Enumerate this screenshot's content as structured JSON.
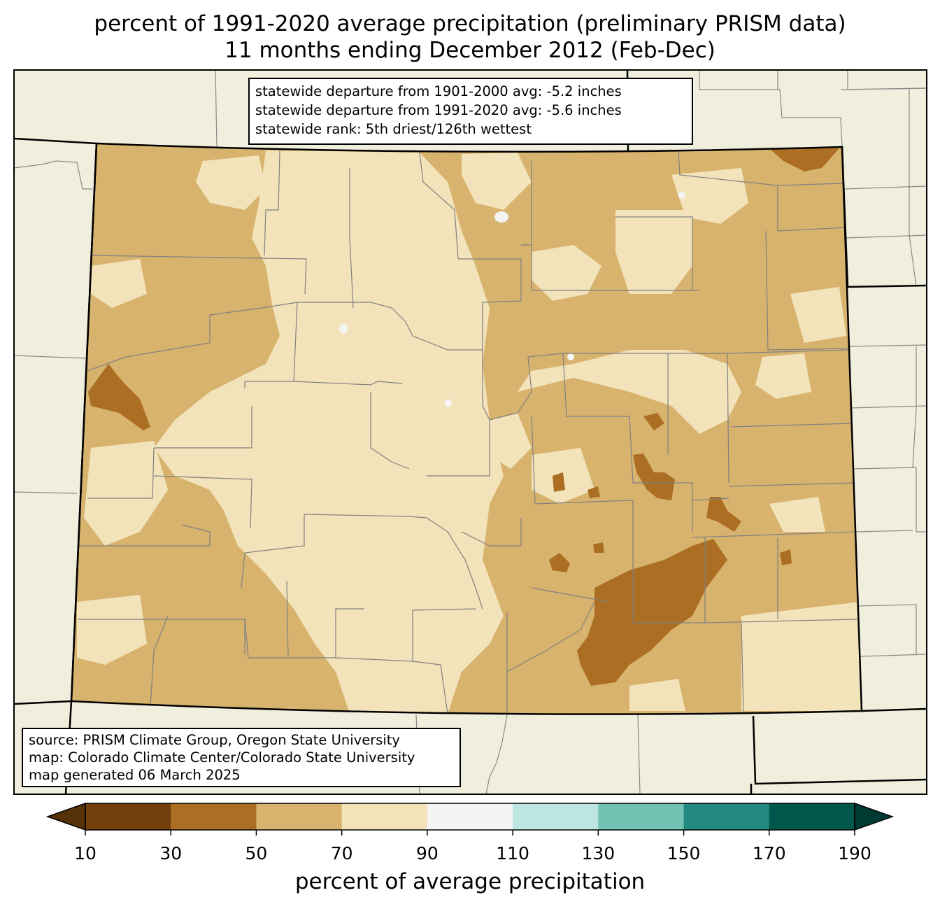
{
  "title": {
    "line1": "percent of 1991-2020 average precipitation (preliminary PRISM data)",
    "line2": "11 months ending December 2012 (Feb-Dec)"
  },
  "stats_box": {
    "line1": "statewide departure from 1901-2000 avg: -5.2 inches",
    "line2": "statewide departure from 1991-2020 avg: -5.6 inches",
    "line3": "statewide rank: 5th driest/126th wettest"
  },
  "source_box": {
    "line1": "source: PRISM Climate Group, Oregon State University",
    "line2": "map: Colorado Climate Center/Colorado State University",
    "line3": "map generated 06 March 2025"
  },
  "colorbar": {
    "label": "percent of average precipitation",
    "ticks": [
      "10",
      "30",
      "50",
      "70",
      "90",
      "110",
      "130",
      "150",
      "170",
      "190"
    ],
    "colors": [
      "#733f0c",
      "#ab6e22",
      "#d8b36e",
      "#f2e3ba",
      "#f4f4f4",
      "#bde6e0",
      "#72c2b4",
      "#228a80",
      "#00574b"
    ],
    "under_color": "#573208",
    "over_color": "#003a32"
  },
  "map_colors": {
    "background": "#f0eedc",
    "class_50_70": "#d8b36e",
    "class_70_90": "#f2e3ba",
    "class_30_50": "#ab6e22",
    "class_90_110": "#f4f4f4",
    "county_lines": "#808080",
    "state_border": "#000000"
  }
}
